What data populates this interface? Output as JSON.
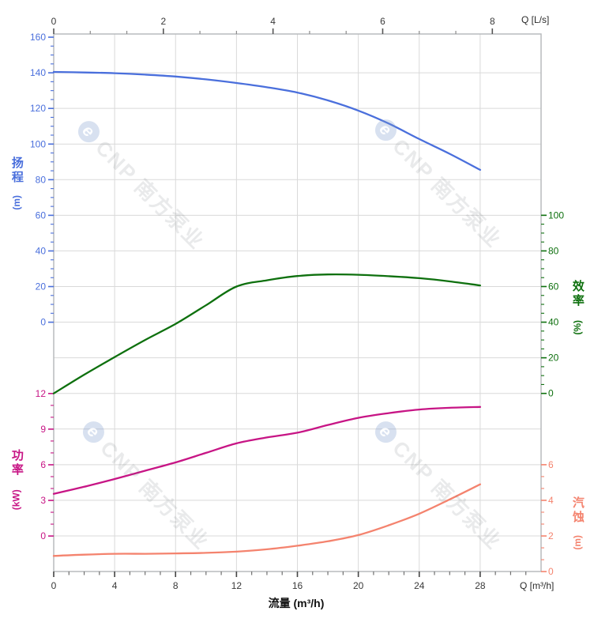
{
  "watermark": {
    "logo_letter": "e",
    "text": "CNP 南方泵业"
  },
  "corner_labels": {
    "top_right": "Q [L/s]",
    "bottom_right": "Q [m³/h]"
  },
  "chart_data": {
    "type": "line",
    "title": "",
    "x_axis": {
      "label": "流量 (m³/h)",
      "corner_label": "Q [m³/h]",
      "ticks": [
        0,
        4,
        8,
        12,
        16,
        20,
        24,
        28
      ],
      "range": [
        0,
        32
      ],
      "minor_step": 1,
      "color": "#3a3a3a"
    },
    "x_top_axis": {
      "corner_label": "Q [L/s]",
      "ticks": [
        0,
        2,
        4,
        6,
        8
      ],
      "range": [
        0,
        8.889
      ],
      "minor_step": 0.6667,
      "color": "#3a3a3a"
    },
    "y_axes": {
      "head": {
        "label": "扬程",
        "unit": "(m)",
        "side": "left",
        "ticks": [
          0,
          20,
          40,
          60,
          80,
          100,
          120,
          140,
          160
        ],
        "minor_step": 5,
        "color": "#4a6fdc"
      },
      "efficiency": {
        "label": "效率",
        "unit": "(%)",
        "side": "right",
        "ticks": [
          0,
          20,
          40,
          60,
          80,
          100
        ],
        "minor_step": 5,
        "color": "#0e700e"
      },
      "power": {
        "label": "功率",
        "unit": "(kW)",
        "side": "left",
        "ticks": [
          0,
          3,
          6,
          9,
          12
        ],
        "minor_step": 1,
        "color": "#c71585"
      },
      "npsh": {
        "label": "汽蚀",
        "unit": "(m)",
        "side": "right",
        "ticks": [
          0,
          2,
          4,
          6
        ],
        "minor_step": 0.6667,
        "color": "#f4836e"
      }
    },
    "grid": true,
    "x_values_m3h": [
      0,
      2,
      4,
      6,
      8,
      10,
      12,
      14,
      16,
      18,
      20,
      22,
      24,
      26,
      28
    ],
    "series": [
      {
        "key": "head",
        "name": "扬程 (m)",
        "color": "#4a6fdc",
        "values": [
          140.5,
          140.2,
          139.8,
          139.0,
          137.9,
          136.3,
          134.3,
          131.9,
          128.9,
          124.5,
          118.8,
          111.5,
          102.8,
          94.5,
          85.5
        ]
      },
      {
        "key": "efficiency",
        "name": "效率 (%)",
        "color": "#0e700e",
        "values": [
          0,
          10.5,
          20.4,
          30,
          39,
          49.5,
          60,
          63.5,
          65.9,
          66.8,
          66.6,
          65.8,
          64.7,
          62.9,
          60.6
        ]
      },
      {
        "key": "power",
        "name": "功率 (kW)",
        "color": "#c71585",
        "values": [
          3.55,
          4.15,
          4.8,
          5.5,
          6.2,
          7.0,
          7.8,
          8.3,
          8.7,
          9.35,
          9.95,
          10.35,
          10.65,
          10.8,
          10.87
        ]
      },
      {
        "key": "npsh",
        "name": "汽蚀 (m)",
        "color": "#f4836e",
        "values": [
          0.88,
          0.95,
          1.0,
          1.0,
          1.02,
          1.05,
          1.12,
          1.25,
          1.45,
          1.7,
          2.05,
          2.6,
          3.25,
          4.05,
          4.9
        ]
      }
    ]
  }
}
